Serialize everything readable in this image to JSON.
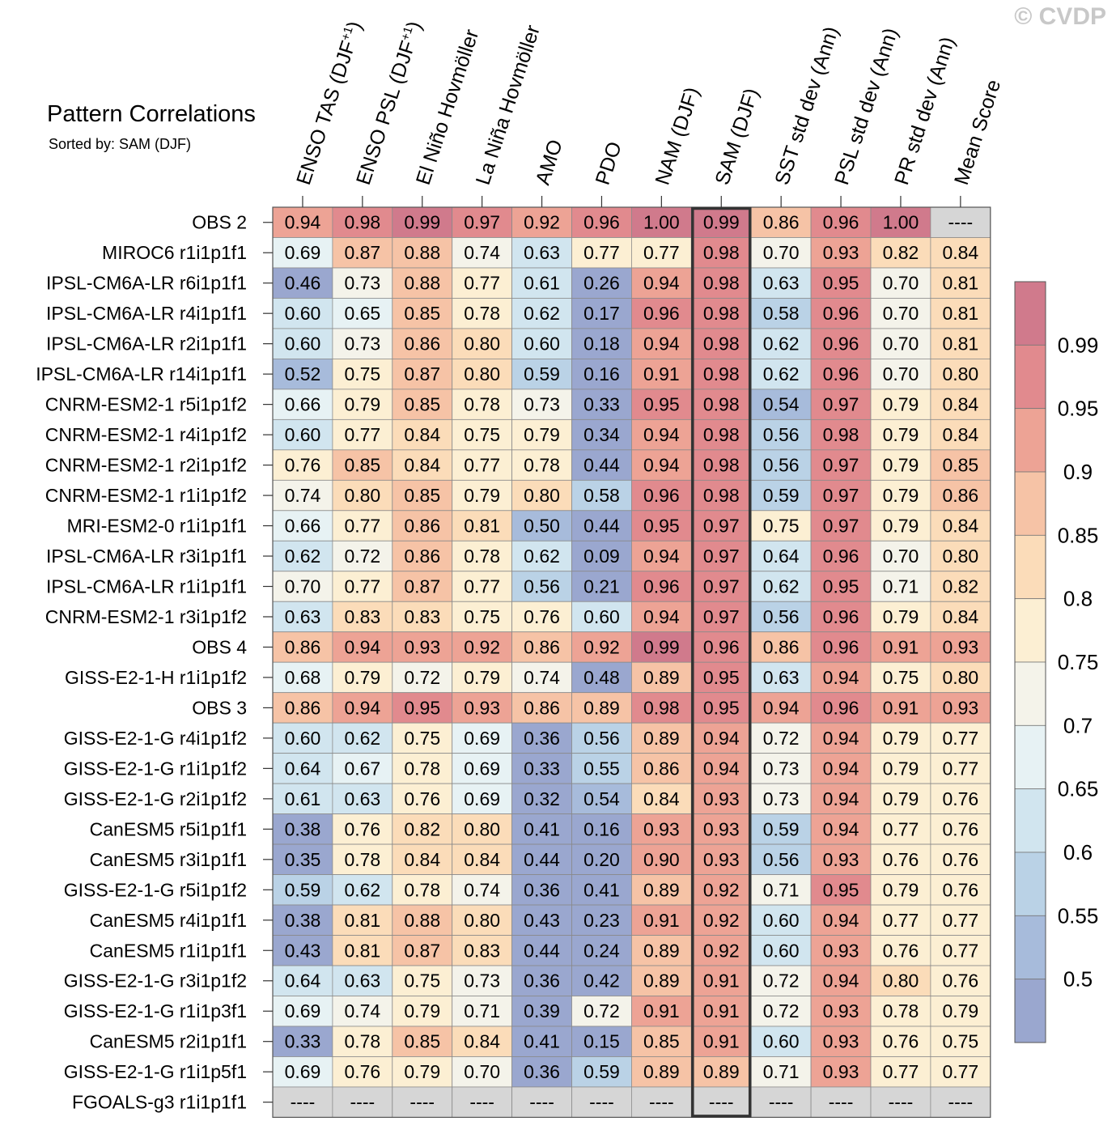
{
  "title": "Pattern Correlations",
  "subtitle": "Sorted by: SAM (DJF)",
  "watermark": "© CVDP",
  "chart_data": {
    "type": "heatmap",
    "sorted_by": "SAM (DJF)",
    "highlight_column": "SAM (DJF)",
    "missing_label": "----",
    "columns": [
      "ENSO TAS (DJF+1)",
      "ENSO PSL (DJF+1)",
      "El Niño Hovmöller",
      "La Niña Hovmöller",
      "AMO",
      "PDO",
      "NAM (DJF)",
      "SAM (DJF)",
      "SST std dev (Ann)",
      "PSL std dev (Ann)",
      "PR std dev (Ann)",
      "Mean Score"
    ],
    "rows": [
      {
        "label": "OBS 2",
        "values": [
          0.94,
          0.98,
          0.99,
          0.97,
          0.92,
          0.96,
          1.0,
          0.99,
          0.86,
          0.96,
          1.0,
          null
        ]
      },
      {
        "label": "MIROC6 r1i1p1f1",
        "values": [
          0.69,
          0.87,
          0.88,
          0.74,
          0.63,
          0.77,
          0.77,
          0.98,
          0.7,
          0.93,
          0.82,
          0.84
        ]
      },
      {
        "label": "IPSL-CM6A-LR r6i1p1f1",
        "values": [
          0.46,
          0.73,
          0.88,
          0.77,
          0.61,
          0.26,
          0.94,
          0.98,
          0.63,
          0.95,
          0.7,
          0.81
        ]
      },
      {
        "label": "IPSL-CM6A-LR r4i1p1f1",
        "values": [
          0.6,
          0.65,
          0.85,
          0.78,
          0.62,
          0.17,
          0.96,
          0.98,
          0.58,
          0.96,
          0.7,
          0.81
        ]
      },
      {
        "label": "IPSL-CM6A-LR r2i1p1f1",
        "values": [
          0.6,
          0.73,
          0.86,
          0.8,
          0.6,
          0.18,
          0.94,
          0.98,
          0.62,
          0.96,
          0.7,
          0.81
        ]
      },
      {
        "label": "IPSL-CM6A-LR r14i1p1f1",
        "values": [
          0.52,
          0.75,
          0.87,
          0.8,
          0.59,
          0.16,
          0.91,
          0.98,
          0.62,
          0.96,
          0.7,
          0.8
        ]
      },
      {
        "label": "CNRM-ESM2-1 r5i1p1f2",
        "values": [
          0.66,
          0.79,
          0.85,
          0.78,
          0.73,
          0.33,
          0.95,
          0.98,
          0.54,
          0.97,
          0.79,
          0.84
        ]
      },
      {
        "label": "CNRM-ESM2-1 r4i1p1f2",
        "values": [
          0.6,
          0.77,
          0.84,
          0.75,
          0.79,
          0.34,
          0.94,
          0.98,
          0.56,
          0.98,
          0.79,
          0.84
        ]
      },
      {
        "label": "CNRM-ESM2-1 r2i1p1f2",
        "values": [
          0.76,
          0.85,
          0.84,
          0.77,
          0.78,
          0.44,
          0.94,
          0.98,
          0.56,
          0.97,
          0.79,
          0.85
        ]
      },
      {
        "label": "CNRM-ESM2-1 r1i1p1f2",
        "values": [
          0.74,
          0.8,
          0.85,
          0.79,
          0.8,
          0.58,
          0.96,
          0.98,
          0.59,
          0.97,
          0.79,
          0.86
        ]
      },
      {
        "label": "MRI-ESM2-0 r1i1p1f1",
        "values": [
          0.66,
          0.77,
          0.86,
          0.81,
          0.5,
          0.44,
          0.95,
          0.97,
          0.75,
          0.97,
          0.79,
          0.84
        ]
      },
      {
        "label": "IPSL-CM6A-LR r3i1p1f1",
        "values": [
          0.62,
          0.72,
          0.86,
          0.78,
          0.62,
          0.09,
          0.94,
          0.97,
          0.64,
          0.96,
          0.7,
          0.8
        ]
      },
      {
        "label": "IPSL-CM6A-LR r1i1p1f1",
        "values": [
          0.7,
          0.77,
          0.87,
          0.77,
          0.56,
          0.21,
          0.96,
          0.97,
          0.62,
          0.95,
          0.71,
          0.82
        ]
      },
      {
        "label": "CNRM-ESM2-1 r3i1p1f2",
        "values": [
          0.63,
          0.83,
          0.83,
          0.75,
          0.76,
          0.6,
          0.94,
          0.97,
          0.56,
          0.96,
          0.79,
          0.84
        ]
      },
      {
        "label": "OBS 4",
        "values": [
          0.86,
          0.94,
          0.93,
          0.92,
          0.86,
          0.92,
          0.99,
          0.96,
          0.86,
          0.96,
          0.91,
          0.93
        ]
      },
      {
        "label": "GISS-E2-1-H r1i1p1f2",
        "values": [
          0.68,
          0.79,
          0.72,
          0.79,
          0.74,
          0.48,
          0.89,
          0.95,
          0.63,
          0.94,
          0.75,
          0.8
        ]
      },
      {
        "label": "OBS 3",
        "values": [
          0.86,
          0.94,
          0.95,
          0.93,
          0.86,
          0.89,
          0.98,
          0.95,
          0.94,
          0.96,
          0.91,
          0.93
        ]
      },
      {
        "label": "GISS-E2-1-G r4i1p1f2",
        "values": [
          0.6,
          0.62,
          0.75,
          0.69,
          0.36,
          0.56,
          0.89,
          0.94,
          0.72,
          0.94,
          0.79,
          0.77
        ]
      },
      {
        "label": "GISS-E2-1-G r1i1p1f2",
        "values": [
          0.64,
          0.67,
          0.78,
          0.69,
          0.33,
          0.55,
          0.86,
          0.94,
          0.73,
          0.94,
          0.79,
          0.77
        ]
      },
      {
        "label": "GISS-E2-1-G r2i1p1f2",
        "values": [
          0.61,
          0.63,
          0.76,
          0.69,
          0.32,
          0.54,
          0.84,
          0.93,
          0.73,
          0.94,
          0.79,
          0.76
        ]
      },
      {
        "label": "CanESM5 r5i1p1f1",
        "values": [
          0.38,
          0.76,
          0.82,
          0.8,
          0.41,
          0.16,
          0.93,
          0.93,
          0.59,
          0.94,
          0.77,
          0.76
        ]
      },
      {
        "label": "CanESM5 r3i1p1f1",
        "values": [
          0.35,
          0.78,
          0.84,
          0.84,
          0.44,
          0.2,
          0.9,
          0.93,
          0.56,
          0.93,
          0.76,
          0.76
        ]
      },
      {
        "label": "GISS-E2-1-G r5i1p1f2",
        "values": [
          0.59,
          0.62,
          0.78,
          0.74,
          0.36,
          0.41,
          0.89,
          0.92,
          0.71,
          0.95,
          0.79,
          0.76
        ]
      },
      {
        "label": "CanESM5 r4i1p1f1",
        "values": [
          0.38,
          0.81,
          0.88,
          0.8,
          0.43,
          0.23,
          0.91,
          0.92,
          0.6,
          0.94,
          0.77,
          0.77
        ]
      },
      {
        "label": "CanESM5 r1i1p1f1",
        "values": [
          0.43,
          0.81,
          0.87,
          0.83,
          0.44,
          0.24,
          0.89,
          0.92,
          0.6,
          0.93,
          0.76,
          0.77
        ]
      },
      {
        "label": "GISS-E2-1-G r3i1p1f2",
        "values": [
          0.64,
          0.63,
          0.75,
          0.73,
          0.36,
          0.42,
          0.89,
          0.91,
          0.72,
          0.94,
          0.8,
          0.76
        ]
      },
      {
        "label": "GISS-E2-1-G r1i1p3f1",
        "values": [
          0.69,
          0.74,
          0.79,
          0.71,
          0.39,
          0.72,
          0.91,
          0.91,
          0.72,
          0.93,
          0.78,
          0.79
        ]
      },
      {
        "label": "CanESM5 r2i1p1f1",
        "values": [
          0.33,
          0.78,
          0.85,
          0.84,
          0.41,
          0.15,
          0.85,
          0.91,
          0.6,
          0.93,
          0.76,
          0.75
        ]
      },
      {
        "label": "GISS-E2-1-G r1i1p5f1",
        "values": [
          0.69,
          0.76,
          0.79,
          0.7,
          0.36,
          0.59,
          0.89,
          0.89,
          0.71,
          0.93,
          0.77,
          0.77
        ]
      },
      {
        "label": "FGOALS-g3 r1i1p1f1",
        "values": [
          null,
          null,
          null,
          null,
          null,
          null,
          null,
          null,
          null,
          null,
          null,
          null
        ]
      }
    ],
    "colorbar": {
      "labels": [
        "0.99",
        "0.95",
        "0.9",
        "0.85",
        "0.8",
        "0.75",
        "0.7",
        "0.65",
        "0.6",
        "0.55",
        "0.5"
      ],
      "levels": [
        0.5,
        0.55,
        0.6,
        0.65,
        0.7,
        0.75,
        0.8,
        0.85,
        0.9,
        0.95,
        0.99
      ],
      "colors": [
        "#9aa7cf",
        "#a7bbdb",
        "#bad2e6",
        "#d1e5ef",
        "#e7f2f4",
        "#f4f3ea",
        "#fcefd3",
        "#fbdcb9",
        "#f6c3a6",
        "#eda395",
        "#e18a8e",
        "#d07a8c"
      ]
    },
    "missing_color": "#d6d6d6"
  }
}
